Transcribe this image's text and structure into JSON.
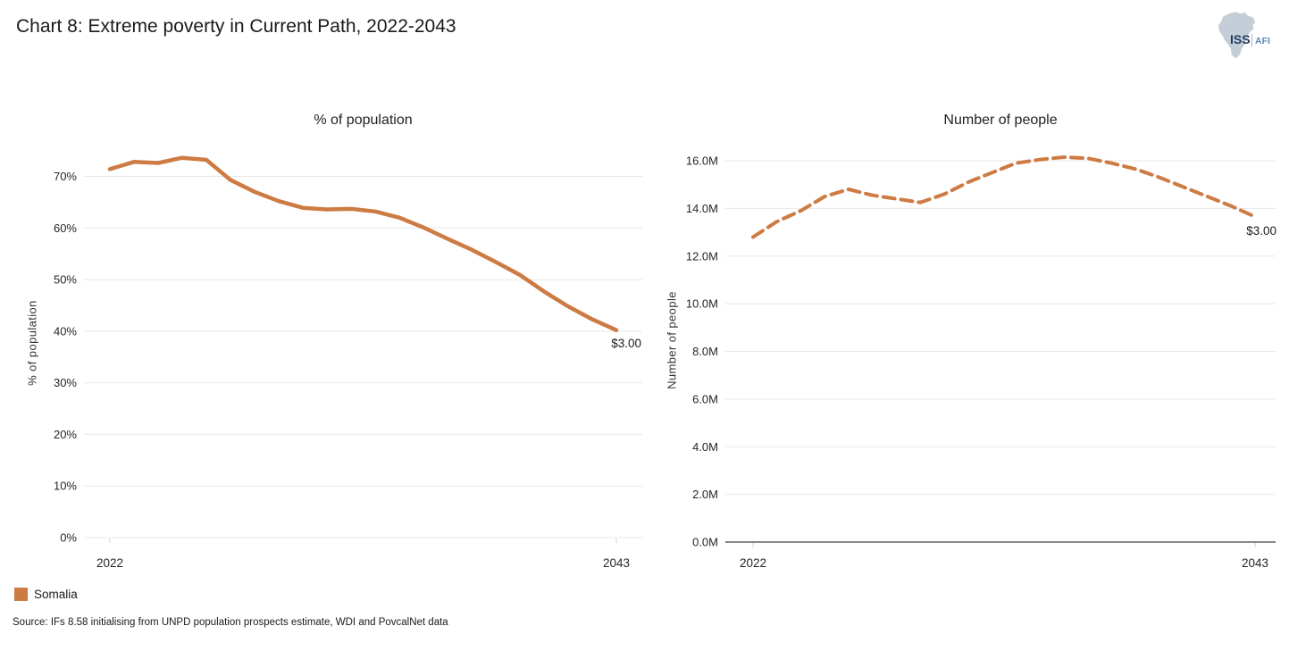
{
  "header": {
    "title": "Chart 8: Extreme poverty in Current Path, 2022-2043",
    "logo": {
      "primary": "ISS",
      "secondary": "AFI",
      "mark": "africa-silhouette"
    }
  },
  "colors": {
    "series": "#cd7b43",
    "gridline": "#e8e8e8",
    "axis_dark": "#404040",
    "tick_text": "#262626"
  },
  "chart_data": [
    {
      "type": "line",
      "title": "% of population",
      "ylabel": "% of population",
      "xlabel": "",
      "grid": true,
      "legend_position": "none",
      "x": [
        2022,
        2023,
        2024,
        2025,
        2026,
        2027,
        2028,
        2029,
        2030,
        2031,
        2032,
        2033,
        2034,
        2035,
        2036,
        2037,
        2038,
        2039,
        2040,
        2041,
        2042,
        2043
      ],
      "series": [
        {
          "name": "Somalia",
          "style": "solid",
          "values": [
            71.4,
            72.8,
            72.6,
            73.6,
            73.2,
            69.3,
            67.0,
            65.2,
            63.9,
            63.6,
            63.7,
            63.2,
            62.0,
            60.1,
            57.9,
            55.8,
            53.4,
            50.9,
            47.7,
            44.8,
            42.3,
            40.2
          ]
        }
      ],
      "ylim": [
        0,
        75
      ],
      "yticks": [
        0,
        10,
        20,
        30,
        40,
        50,
        60,
        70
      ],
      "ytick_labels": [
        "0%",
        "10%",
        "20%",
        "30%",
        "40%",
        "50%",
        "60%",
        "70%"
      ],
      "xtick_labels": [
        "2022",
        "2043"
      ],
      "annotation": "$3.00"
    },
    {
      "type": "line",
      "title": "Number of people",
      "ylabel": "Number of people",
      "xlabel": "",
      "grid": true,
      "legend_position": "none",
      "x": [
        2022,
        2023,
        2024,
        2025,
        2026,
        2027,
        2028,
        2029,
        2030,
        2031,
        2032,
        2033,
        2034,
        2035,
        2036,
        2037,
        2038,
        2039,
        2040,
        2041,
        2042,
        2043
      ],
      "series": [
        {
          "name": "Somalia",
          "style": "dashed",
          "values": [
            12.8,
            13.45,
            13.9,
            14.5,
            14.8,
            14.55,
            14.4,
            14.25,
            14.6,
            15.1,
            15.5,
            15.9,
            16.05,
            16.15,
            16.1,
            15.9,
            15.65,
            15.3,
            14.9,
            14.5,
            14.1,
            13.65
          ]
        }
      ],
      "ylim": [
        0,
        16.8
      ],
      "yticks": [
        0,
        2,
        4,
        6,
        8,
        10,
        12,
        14,
        16
      ],
      "ytick_labels": [
        "0.0M",
        "2.0M",
        "4.0M",
        "6.0M",
        "8.0M",
        "10.0M",
        "12.0M",
        "14.0M",
        "16.0M"
      ],
      "xtick_labels": [
        "2022",
        "2043"
      ],
      "annotation": "$3.00"
    }
  ],
  "legend": {
    "items": [
      {
        "label": "Somalia",
        "color": "#cd7b43"
      }
    ]
  },
  "source": "Source: IFs 8.58 initialising from UNPD population prospects estimate, WDI and PovcalNet data"
}
